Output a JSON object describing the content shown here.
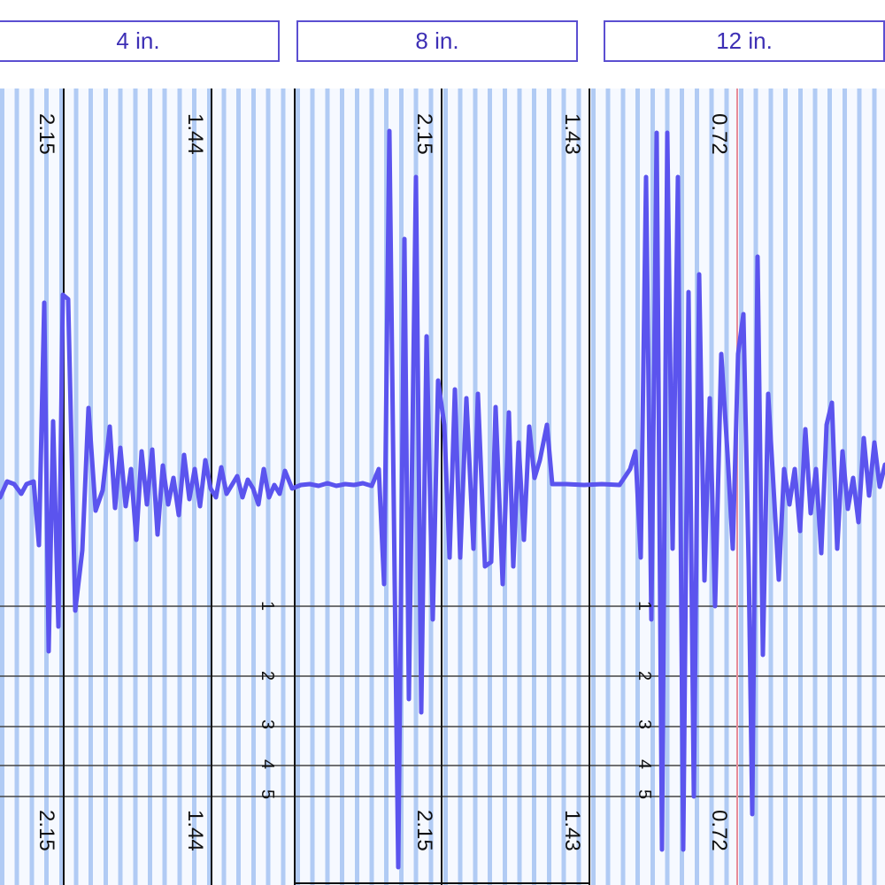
{
  "tabs": [
    {
      "label": "4 in."
    },
    {
      "label": "8 in."
    },
    {
      "label": "12 in."
    }
  ],
  "panels": {
    "p1": {
      "top_left": "2.15",
      "top_right": "1.44",
      "bottom_left": "2.15",
      "bottom_right": "1.44"
    },
    "p2": {
      "top_left": "2.15",
      "top_right": "1.43",
      "bottom_left": "2.15",
      "bottom_right": "1.43"
    },
    "p3": {
      "top_left": "0.72",
      "bottom_left": "0.72"
    }
  },
  "depth_ticks": [
    "1",
    "2",
    "3",
    "4",
    "5"
  ],
  "colors": {
    "trace": "#5b54ee",
    "border": "#5b4fd1",
    "label": "#3d2fb5",
    "marker": "#e88b99"
  }
}
